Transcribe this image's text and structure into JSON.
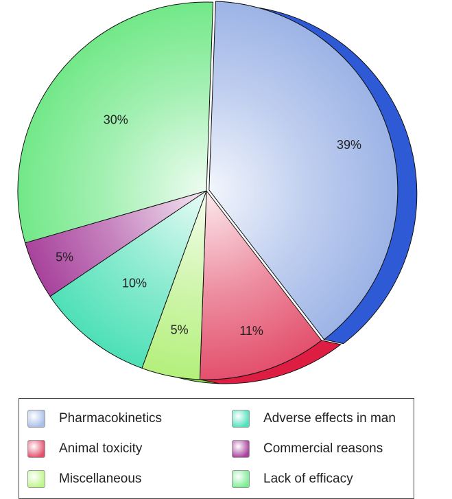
{
  "chart_data": {
    "type": "pie",
    "title": "",
    "categories": [
      "Pharmacokinetics",
      "Animal toxicity",
      "Miscellaneous",
      "Adverse effects in man",
      "Commercial reasons",
      "Lack of efficacy"
    ],
    "values": [
      39,
      11,
      5,
      10,
      5,
      30
    ],
    "slice_labels": [
      "39%",
      "11%",
      "5%",
      "10%",
      "5%",
      "30%"
    ],
    "colors": {
      "Pharmacokinetics": "#9db4e6",
      "Animal toxicity": "#e3506d",
      "Miscellaneous": "#b4f07c",
      "Adverse effects in man": "#4ee0b6",
      "Commercial reasons": "#a8429c",
      "Lack of efficacy": "#72e888"
    },
    "edge_colors": {
      "Pharmacokinetics": "#2f5ad6",
      "Animal toxicity": "#dd1e42",
      "Miscellaneous": "#86de48"
    },
    "legend_placement": "bottom"
  },
  "legend": {
    "items": [
      {
        "label": "Pharmacokinetics",
        "color": "#a9bfe9"
      },
      {
        "label": "Animal toxicity",
        "color": "#e3506d"
      },
      {
        "label": "Miscellaneous",
        "color": "#bff58a"
      },
      {
        "label": "Adverse effects in man",
        "color": "#52e0bc"
      },
      {
        "label": "Commercial reasons",
        "color": "#a8429c"
      },
      {
        "label": "Lack of efficacy",
        "color": "#7eec95"
      }
    ]
  }
}
